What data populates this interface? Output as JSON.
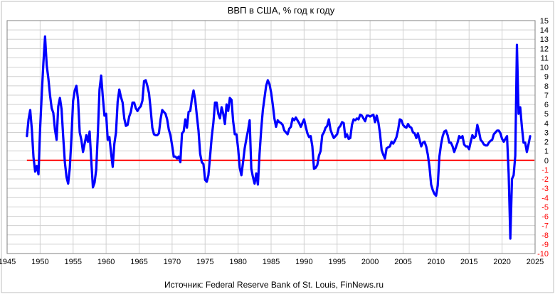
{
  "chart_data": {
    "type": "line",
    "title": "ВВП в США, % год к году",
    "source": "Источник: Federal Reserve Bank of St. Louis, FinNews.ru",
    "xlabel": "",
    "ylabel": "",
    "xlim": [
      1945,
      2025
    ],
    "ylim": [
      -10,
      15
    ],
    "x_ticks": [
      1945,
      1950,
      1955,
      1960,
      1965,
      1970,
      1975,
      1980,
      1985,
      1990,
      1995,
      2000,
      2005,
      2010,
      2015,
      2020,
      2025
    ],
    "y_ticks": [
      15,
      14,
      13,
      12,
      11,
      10,
      9,
      8,
      7,
      6,
      5,
      4,
      3,
      2,
      1,
      0,
      -1,
      -2,
      -3,
      -4,
      -5,
      -6,
      -7,
      -8,
      -9,
      -10
    ],
    "grid": true,
    "reference_line": 0,
    "colors": {
      "series": "#0000ff",
      "zero_line": "#ff0000",
      "negative_tick": "#ff0000",
      "positive_tick": "#000000",
      "grid": "#d0d0d0"
    },
    "series": [
      {
        "name": "",
        "points": [
          [
            1948.0,
            2.6
          ],
          [
            1948.25,
            4.4
          ],
          [
            1948.5,
            5.4
          ],
          [
            1948.75,
            3.3
          ],
          [
            1949.0,
            0.3
          ],
          [
            1949.25,
            -1.2
          ],
          [
            1949.5,
            -0.6
          ],
          [
            1949.75,
            -1.5
          ],
          [
            1950.0,
            3.4
          ],
          [
            1950.25,
            7.1
          ],
          [
            1950.5,
            10.5
          ],
          [
            1950.75,
            13.3
          ],
          [
            1951.0,
            10.2
          ],
          [
            1951.25,
            8.8
          ],
          [
            1951.5,
            7.0
          ],
          [
            1951.75,
            5.6
          ],
          [
            1952.0,
            5.1
          ],
          [
            1952.25,
            3.3
          ],
          [
            1952.5,
            2.2
          ],
          [
            1952.75,
            5.8
          ],
          [
            1953.0,
            6.7
          ],
          [
            1953.25,
            5.5
          ],
          [
            1953.5,
            2.5
          ],
          [
            1953.75,
            -0.2
          ],
          [
            1954.0,
            -1.8
          ],
          [
            1954.25,
            -2.5
          ],
          [
            1954.5,
            -0.8
          ],
          [
            1954.75,
            2.5
          ],
          [
            1955.0,
            6.4
          ],
          [
            1955.25,
            7.5
          ],
          [
            1955.5,
            8.0
          ],
          [
            1955.75,
            6.5
          ],
          [
            1956.0,
            3.0
          ],
          [
            1956.25,
            2.2
          ],
          [
            1956.5,
            0.9
          ],
          [
            1956.75,
            1.8
          ],
          [
            1957.0,
            2.7
          ],
          [
            1957.25,
            2.0
          ],
          [
            1957.5,
            3.1
          ],
          [
            1957.75,
            0.0
          ],
          [
            1958.0,
            -2.9
          ],
          [
            1958.25,
            -2.4
          ],
          [
            1958.5,
            -1.0
          ],
          [
            1958.75,
            2.9
          ],
          [
            1959.0,
            7.6
          ],
          [
            1959.25,
            9.1
          ],
          [
            1959.5,
            6.8
          ],
          [
            1959.75,
            4.8
          ],
          [
            1960.0,
            5.0
          ],
          [
            1960.25,
            2.2
          ],
          [
            1960.5,
            2.5
          ],
          [
            1960.75,
            0.8
          ],
          [
            1961.0,
            -0.7
          ],
          [
            1961.25,
            1.8
          ],
          [
            1961.5,
            3.0
          ],
          [
            1961.75,
            6.3
          ],
          [
            1962.0,
            7.6
          ],
          [
            1962.25,
            6.8
          ],
          [
            1962.5,
            6.2
          ],
          [
            1962.75,
            4.5
          ],
          [
            1963.0,
            3.7
          ],
          [
            1963.25,
            3.8
          ],
          [
            1963.5,
            4.7
          ],
          [
            1963.75,
            5.2
          ],
          [
            1964.0,
            6.2
          ],
          [
            1964.25,
            6.2
          ],
          [
            1964.5,
            5.6
          ],
          [
            1964.75,
            5.3
          ],
          [
            1965.0,
            5.6
          ],
          [
            1965.25,
            5.8
          ],
          [
            1965.5,
            6.4
          ],
          [
            1965.75,
            8.5
          ],
          [
            1966.0,
            8.6
          ],
          [
            1966.25,
            8.0
          ],
          [
            1966.5,
            7.2
          ],
          [
            1966.75,
            5.5
          ],
          [
            1967.0,
            3.5
          ],
          [
            1967.25,
            2.8
          ],
          [
            1967.5,
            2.7
          ],
          [
            1967.75,
            2.7
          ],
          [
            1968.0,
            2.9
          ],
          [
            1968.25,
            4.4
          ],
          [
            1968.5,
            5.4
          ],
          [
            1968.75,
            5.2
          ],
          [
            1969.0,
            5.0
          ],
          [
            1969.25,
            4.4
          ],
          [
            1969.5,
            3.3
          ],
          [
            1969.75,
            2.7
          ],
          [
            1970.0,
            1.6
          ],
          [
            1970.25,
            0.4
          ],
          [
            1970.5,
            0.4
          ],
          [
            1970.75,
            0.2
          ],
          [
            1971.0,
            0.4
          ],
          [
            1971.25,
            -0.2
          ],
          [
            1971.5,
            2.9
          ],
          [
            1971.75,
            3.1
          ],
          [
            1972.0,
            4.4
          ],
          [
            1972.25,
            3.5
          ],
          [
            1972.5,
            5.2
          ],
          [
            1972.75,
            5.3
          ],
          [
            1973.0,
            6.6
          ],
          [
            1973.25,
            7.5
          ],
          [
            1973.5,
            6.5
          ],
          [
            1973.75,
            4.8
          ],
          [
            1974.0,
            3.2
          ],
          [
            1974.25,
            0.7
          ],
          [
            1974.5,
            -0.2
          ],
          [
            1974.75,
            -0.4
          ],
          [
            1975.0,
            -2.1
          ],
          [
            1975.25,
            -2.3
          ],
          [
            1975.5,
            -1.6
          ],
          [
            1975.75,
            0.4
          ],
          [
            1976.0,
            2.5
          ],
          [
            1976.25,
            4.0
          ],
          [
            1976.5,
            6.2
          ],
          [
            1976.75,
            6.2
          ],
          [
            1977.0,
            5.0
          ],
          [
            1977.25,
            4.5
          ],
          [
            1977.5,
            5.7
          ],
          [
            1977.75,
            5.0
          ],
          [
            1978.0,
            3.9
          ],
          [
            1978.25,
            6.0
          ],
          [
            1978.5,
            5.3
          ],
          [
            1978.75,
            6.7
          ],
          [
            1979.0,
            6.5
          ],
          [
            1979.25,
            4.2
          ],
          [
            1979.5,
            2.8
          ],
          [
            1979.75,
            2.8
          ],
          [
            1980.0,
            1.3
          ],
          [
            1980.25,
            -0.8
          ],
          [
            1980.5,
            -1.6
          ],
          [
            1980.75,
            -0.2
          ],
          [
            1981.0,
            1.3
          ],
          [
            1981.25,
            2.3
          ],
          [
            1981.5,
            3.2
          ],
          [
            1981.75,
            4.3
          ],
          [
            1982.0,
            -0.9
          ],
          [
            1982.25,
            -1.8
          ],
          [
            1982.5,
            -2.5
          ],
          [
            1982.75,
            -1.4
          ],
          [
            1983.0,
            -2.6
          ],
          [
            1983.25,
            0.7
          ],
          [
            1983.5,
            3.3
          ],
          [
            1983.75,
            5.4
          ],
          [
            1984.0,
            6.7
          ],
          [
            1984.25,
            8.0
          ],
          [
            1984.5,
            8.6
          ],
          [
            1984.75,
            8.2
          ],
          [
            1985.0,
            7.3
          ],
          [
            1985.25,
            6.0
          ],
          [
            1985.5,
            4.5
          ],
          [
            1985.75,
            3.6
          ],
          [
            1986.0,
            4.3
          ],
          [
            1986.25,
            4.1
          ],
          [
            1986.5,
            4.0
          ],
          [
            1986.75,
            3.8
          ],
          [
            1987.0,
            3.2
          ],
          [
            1987.25,
            3.0
          ],
          [
            1987.5,
            2.8
          ],
          [
            1987.75,
            3.4
          ],
          [
            1988.0,
            3.6
          ],
          [
            1988.25,
            4.5
          ],
          [
            1988.5,
            4.3
          ],
          [
            1988.75,
            4.6
          ],
          [
            1989.0,
            4.3
          ],
          [
            1989.25,
            4.0
          ],
          [
            1989.5,
            3.6
          ],
          [
            1989.75,
            4.0
          ],
          [
            1990.0,
            4.4
          ],
          [
            1990.25,
            3.6
          ],
          [
            1990.5,
            2.9
          ],
          [
            1990.75,
            2.5
          ],
          [
            1991.0,
            2.6
          ],
          [
            1991.25,
            1.5
          ],
          [
            1991.5,
            -0.9
          ],
          [
            1991.75,
            -0.8
          ],
          [
            1992.0,
            -0.5
          ],
          [
            1992.25,
            0.5
          ],
          [
            1992.5,
            1.0
          ],
          [
            1992.75,
            2.7
          ],
          [
            1993.0,
            3.0
          ],
          [
            1993.25,
            3.5
          ],
          [
            1993.5,
            3.7
          ],
          [
            1993.75,
            4.4
          ],
          [
            1994.0,
            3.3
          ],
          [
            1994.25,
            2.8
          ],
          [
            1994.5,
            2.4
          ],
          [
            1994.75,
            2.6
          ],
          [
            1995.0,
            2.8
          ],
          [
            1995.25,
            3.5
          ],
          [
            1995.5,
            3.7
          ],
          [
            1995.75,
            4.1
          ],
          [
            1996.0,
            4.0
          ],
          [
            1996.25,
            2.5
          ],
          [
            1996.5,
            2.8
          ],
          [
            1996.75,
            2.3
          ],
          [
            1997.0,
            2.4
          ],
          [
            1997.25,
            3.8
          ],
          [
            1997.5,
            4.4
          ],
          [
            1997.75,
            4.3
          ],
          [
            1998.0,
            4.5
          ],
          [
            1998.25,
            4.4
          ],
          [
            1998.5,
            4.9
          ],
          [
            1998.75,
            4.8
          ],
          [
            1999.0,
            4.5
          ],
          [
            1999.25,
            4.2
          ],
          [
            1999.5,
            4.8
          ],
          [
            1999.75,
            4.8
          ],
          [
            2000.0,
            4.7
          ],
          [
            2000.25,
            4.8
          ],
          [
            2000.5,
            4.9
          ],
          [
            2000.75,
            4.1
          ],
          [
            2001.0,
            4.8
          ],
          [
            2001.25,
            4.1
          ],
          [
            2001.5,
            2.9
          ],
          [
            2001.75,
            1.1
          ],
          [
            2002.0,
            0.6
          ],
          [
            2002.25,
            0.2
          ],
          [
            2002.5,
            1.3
          ],
          [
            2002.75,
            1.4
          ],
          [
            2003.0,
            1.5
          ],
          [
            2003.25,
            2.0
          ],
          [
            2003.5,
            1.8
          ],
          [
            2003.75,
            2.1
          ],
          [
            2004.0,
            2.5
          ],
          [
            2004.25,
            3.3
          ],
          [
            2004.5,
            4.4
          ],
          [
            2004.75,
            4.3
          ],
          [
            2005.0,
            3.8
          ],
          [
            2005.25,
            3.6
          ],
          [
            2005.5,
            3.5
          ],
          [
            2005.75,
            3.9
          ],
          [
            2006.0,
            3.6
          ],
          [
            2006.25,
            3.5
          ],
          [
            2006.5,
            3.0
          ],
          [
            2006.75,
            2.9
          ],
          [
            2007.0,
            2.4
          ],
          [
            2007.25,
            2.9
          ],
          [
            2007.5,
            2.2
          ],
          [
            2007.75,
            1.5
          ],
          [
            2008.0,
            1.9
          ],
          [
            2008.25,
            2.0
          ],
          [
            2008.5,
            1.5
          ],
          [
            2008.75,
            0.6
          ],
          [
            2009.0,
            -0.7
          ],
          [
            2009.25,
            -2.6
          ],
          [
            2009.5,
            -3.2
          ],
          [
            2009.75,
            -3.6
          ],
          [
            2010.0,
            -3.8
          ],
          [
            2010.25,
            -2.7
          ],
          [
            2010.5,
            0.4
          ],
          [
            2010.75,
            1.7
          ],
          [
            2011.0,
            2.6
          ],
          [
            2011.25,
            3.1
          ],
          [
            2011.5,
            3.2
          ],
          [
            2011.75,
            2.7
          ],
          [
            2012.0,
            1.9
          ],
          [
            2012.25,
            1.9
          ],
          [
            2012.5,
            1.5
          ],
          [
            2012.75,
            0.9
          ],
          [
            2013.0,
            1.4
          ],
          [
            2013.25,
            1.9
          ],
          [
            2013.5,
            2.6
          ],
          [
            2013.75,
            2.4
          ],
          [
            2014.0,
            2.6
          ],
          [
            2014.25,
            1.7
          ],
          [
            2014.5,
            1.5
          ],
          [
            2014.75,
            1.5
          ],
          [
            2015.0,
            1.2
          ],
          [
            2015.25,
            2.0
          ],
          [
            2015.5,
            2.7
          ],
          [
            2015.75,
            2.4
          ],
          [
            2016.0,
            2.6
          ],
          [
            2016.25,
            3.8
          ],
          [
            2016.5,
            3.1
          ],
          [
            2016.75,
            2.2
          ],
          [
            2017.0,
            2.0
          ],
          [
            2017.25,
            1.7
          ],
          [
            2017.5,
            1.6
          ],
          [
            2017.75,
            1.6
          ],
          [
            2018.0,
            1.9
          ],
          [
            2018.25,
            2.1
          ],
          [
            2018.5,
            2.2
          ],
          [
            2018.75,
            2.8
          ],
          [
            2019.0,
            3.0
          ],
          [
            2019.25,
            3.2
          ],
          [
            2019.5,
            3.2
          ],
          [
            2019.75,
            2.9
          ],
          [
            2020.0,
            2.3
          ],
          [
            2020.25,
            2.0
          ],
          [
            2020.5,
            2.3
          ],
          [
            2020.75,
            2.6
          ],
          [
            2021.0,
            -1.5
          ],
          [
            2021.25,
            -8.4
          ],
          [
            2021.5,
            -2.0
          ],
          [
            2021.75,
            -1.6
          ],
          [
            2022.0,
            0.5
          ],
          [
            2022.25,
            12.4
          ],
          [
            2022.5,
            5.0
          ],
          [
            2022.75,
            5.7
          ],
          [
            2023.0,
            3.6
          ],
          [
            2023.25,
            1.9
          ],
          [
            2023.5,
            1.9
          ],
          [
            2023.75,
            0.9
          ],
          [
            2024.0,
            1.7
          ],
          [
            2024.25,
            2.6
          ]
        ]
      }
    ]
  }
}
